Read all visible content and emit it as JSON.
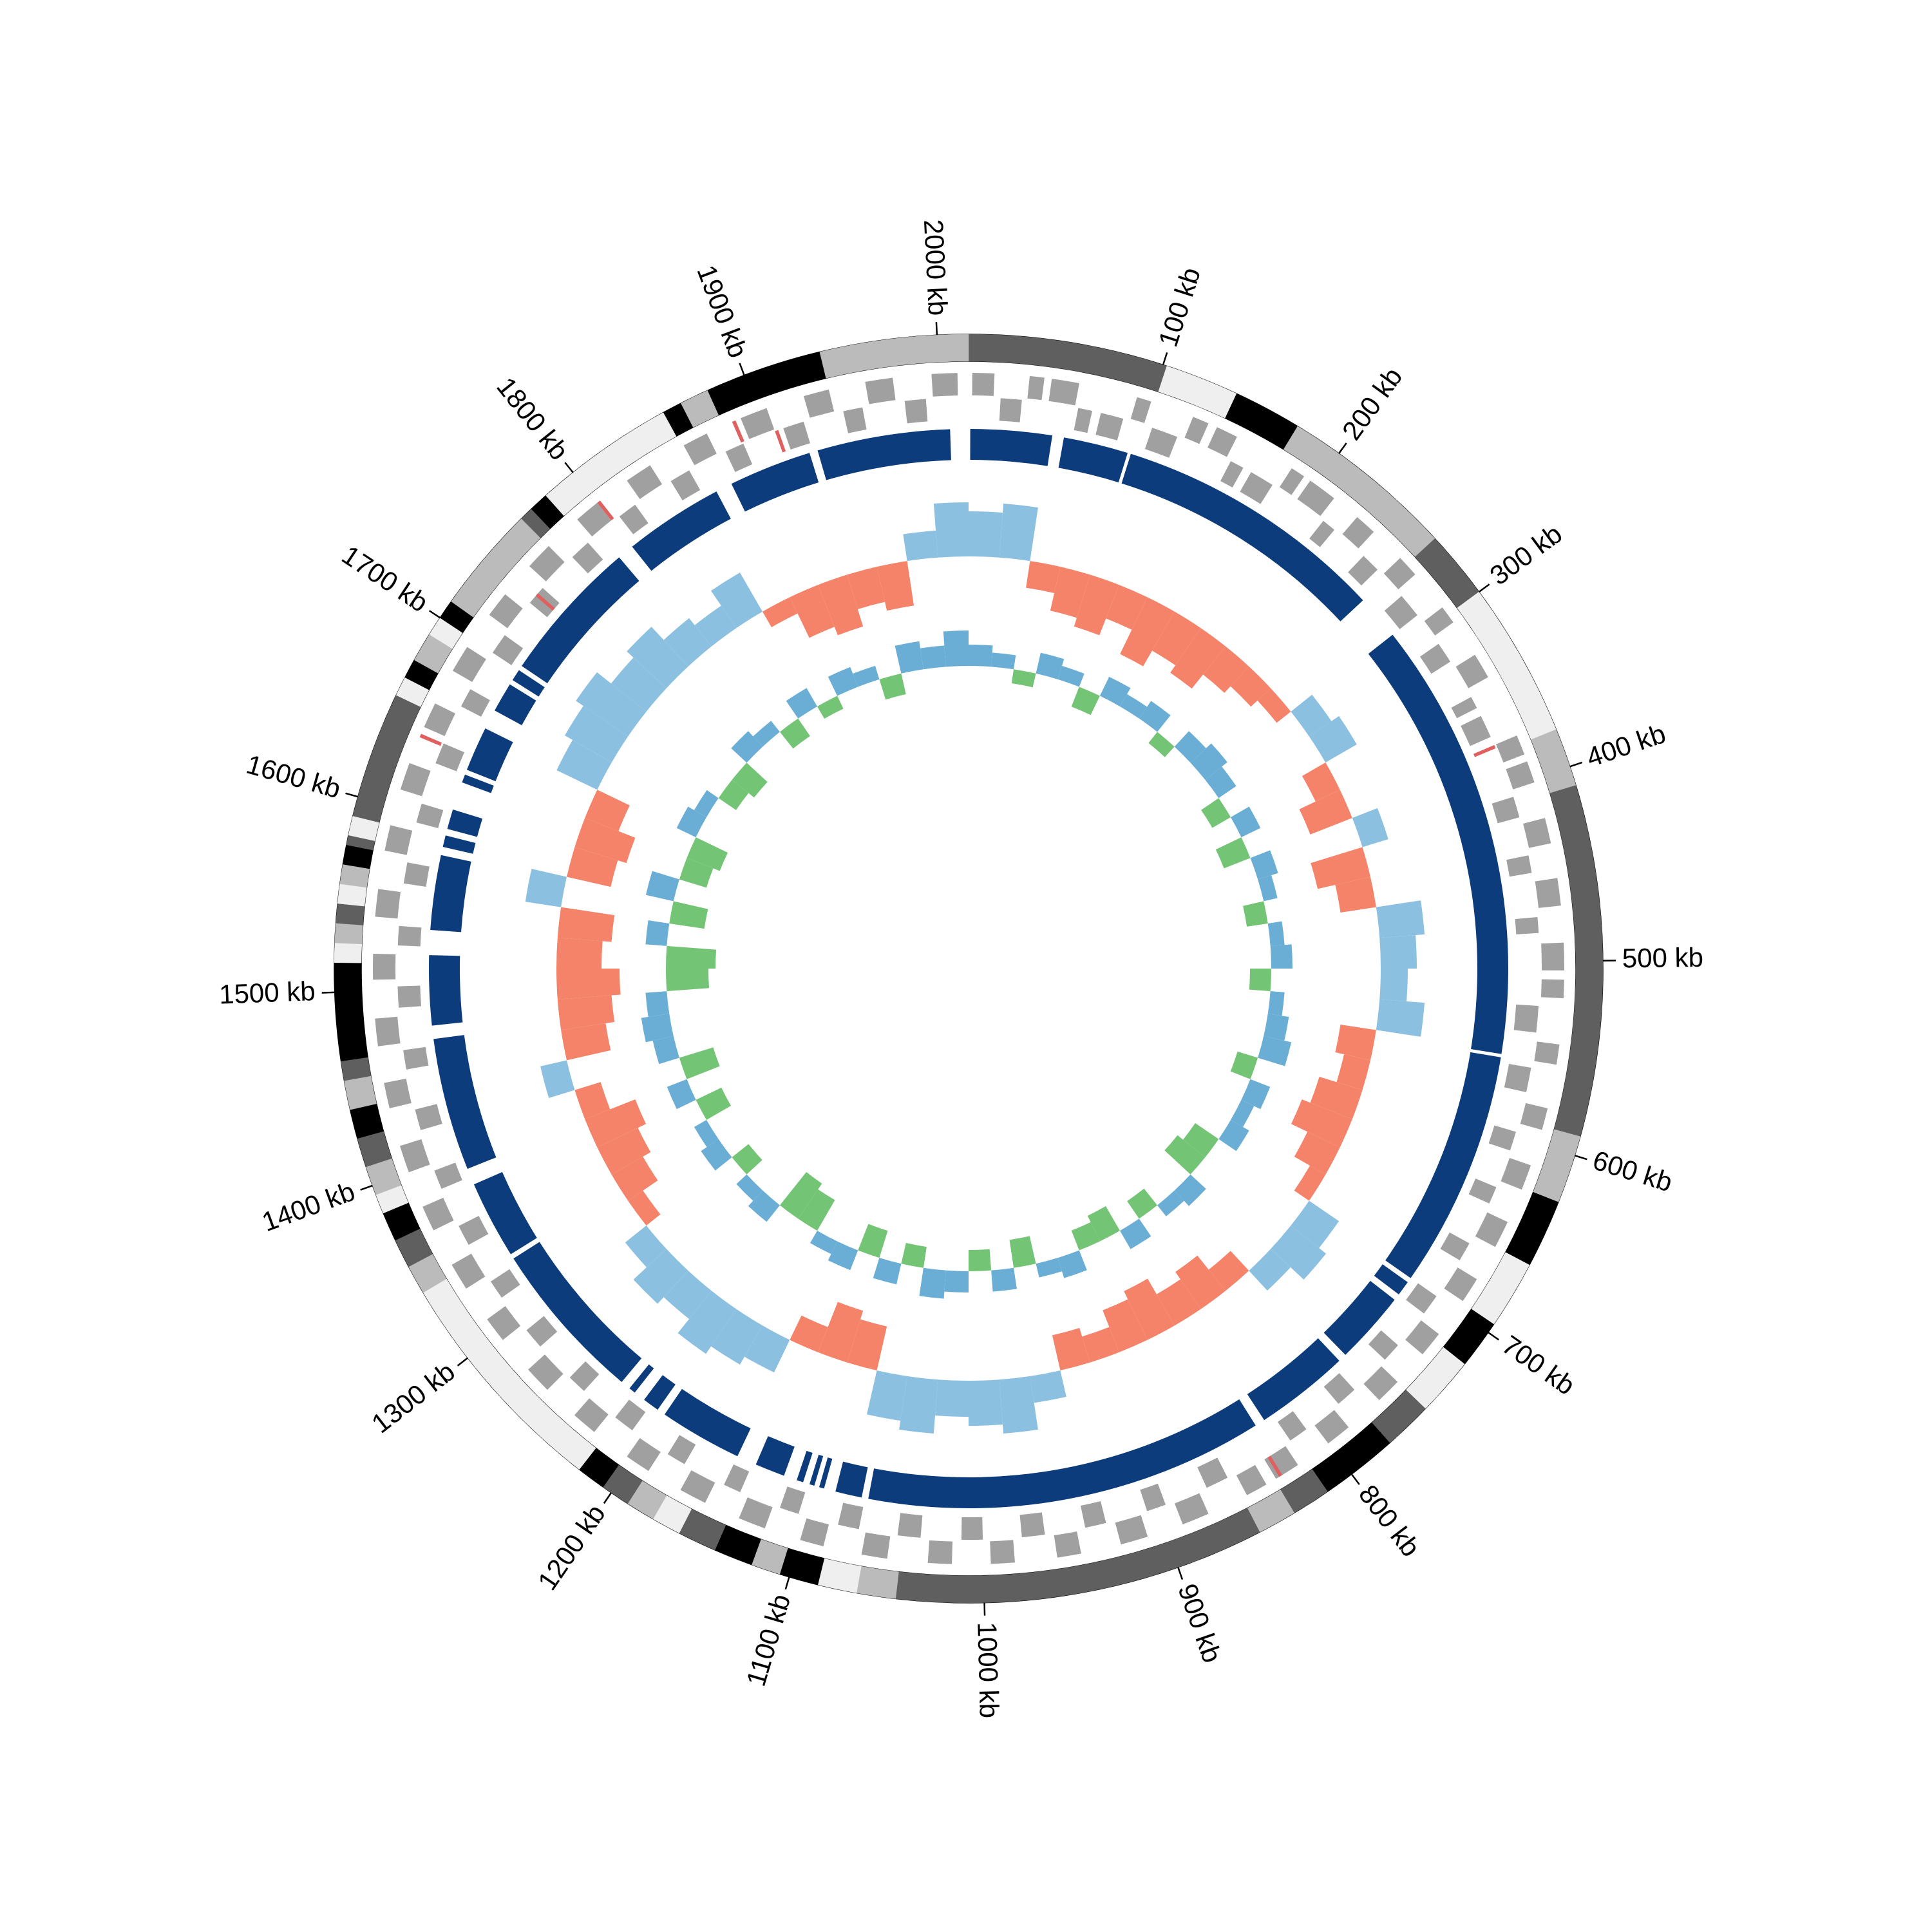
{
  "chart_data": {
    "type": "circos",
    "xlim": [
      0,
      2016
    ],
    "xticks": [
      {
        "value": 100,
        "label": "100 kb"
      },
      {
        "value": 200,
        "label": "200 kb"
      },
      {
        "value": 300,
        "label": "300 kb"
      },
      {
        "value": 400,
        "label": "400 kb"
      },
      {
        "value": 500,
        "label": "500 kb"
      },
      {
        "value": 600,
        "label": "600 kb"
      },
      {
        "value": 700,
        "label": "700 kb"
      },
      {
        "value": 800,
        "label": "800 kb"
      },
      {
        "value": 900,
        "label": "900 kb"
      },
      {
        "value": 1000,
        "label": "1000 kb"
      },
      {
        "value": 1100,
        "label": "1100 kb"
      },
      {
        "value": 1200,
        "label": "1200 kb"
      },
      {
        "value": 1300,
        "label": "1300 kb"
      },
      {
        "value": 1400,
        "label": "1400 kb"
      },
      {
        "value": 1500,
        "label": "1500 kb"
      },
      {
        "value": 1600,
        "label": "1600 kb"
      },
      {
        "value": 1700,
        "label": "1700 kb"
      },
      {
        "value": 1800,
        "label": "1800 kb"
      },
      {
        "value": 1900,
        "label": "1900 kb"
      },
      {
        "value": 2000,
        "label": "2000 kb"
      }
    ],
    "contigs": [
      [
        0,
        50,
        "#5f5f5f"
      ],
      [
        50,
        102,
        "#5f5f5f"
      ],
      [
        102,
        140,
        "#efefef"
      ],
      [
        140,
        175,
        "#000000"
      ],
      [
        175,
        230,
        "#bbbbbb"
      ],
      [
        230,
        265,
        "#bbbbbb"
      ],
      [
        265,
        300,
        "#5f5f5f"
      ],
      [
        300,
        350,
        "#efefef"
      ],
      [
        350,
        380,
        "#efefef"
      ],
      [
        380,
        410,
        "#bbbbbb"
      ],
      [
        410,
        590,
        "#5f5f5f"
      ],
      [
        590,
        625,
        "#bbbbbb"
      ],
      [
        625,
        660,
        "#000000"
      ],
      [
        660,
        695,
        "#efefef"
      ],
      [
        695,
        720,
        "#000000"
      ],
      [
        720,
        750,
        "#efefef"
      ],
      [
        750,
        775,
        "#5f5f5f"
      ],
      [
        775,
        815,
        "#000000"
      ],
      [
        815,
        835,
        "#5f5f5f"
      ],
      [
        835,
        855,
        "#bbbbbb"
      ],
      [
        855,
        1045,
        "#5f5f5f"
      ],
      [
        1045,
        1065,
        "#bbbbbb"
      ],
      [
        1065,
        1085,
        "#efefef"
      ],
      [
        1085,
        1105,
        "#000000"
      ],
      [
        1105,
        1120,
        "#bbbbbb"
      ],
      [
        1120,
        1140,
        "#000000"
      ],
      [
        1140,
        1160,
        "#5f5f5f"
      ],
      [
        1160,
        1175,
        "#efefef"
      ],
      [
        1175,
        1190,
        "#bbbbbb"
      ],
      [
        1190,
        1205,
        "#5f5f5f"
      ],
      [
        1205,
        1220,
        "#000000"
      ],
      [
        1220,
        1340,
        "#efefef"
      ],
      [
        1340,
        1355,
        "#bbbbbb"
      ],
      [
        1355,
        1370,
        "#5f5f5f"
      ],
      [
        1370,
        1385,
        "#000000"
      ],
      [
        1385,
        1395,
        "#efefef"
      ],
      [
        1395,
        1410,
        "#bbbbbb"
      ],
      [
        1410,
        1425,
        "#5f5f5f"
      ],
      [
        1425,
        1440,
        "#000000"
      ],
      [
        1440,
        1455,
        "#bbbbbb"
      ],
      [
        1455,
        1465,
        "#5f5f5f"
      ],
      [
        1465,
        1515,
        "#000000"
      ],
      [
        1515,
        1525,
        "#efefef"
      ],
      [
        1525,
        1535,
        "#bbbbbb"
      ],
      [
        1535,
        1545,
        "#5f5f5f"
      ],
      [
        1545,
        1555,
        "#efefef"
      ],
      [
        1555,
        1565,
        "#bbbbbb"
      ],
      [
        1565,
        1575,
        "#000000"
      ],
      [
        1575,
        1580,
        "#5f5f5f"
      ],
      [
        1580,
        1590,
        "#efefef"
      ],
      [
        1590,
        1655,
        "#5f5f5f"
      ],
      [
        1655,
        1665,
        "#efefef"
      ],
      [
        1665,
        1675,
        "#000000"
      ],
      [
        1675,
        1690,
        "#bbbbbb"
      ],
      [
        1690,
        1700,
        "#efefef"
      ],
      [
        1700,
        1710,
        "#000000"
      ],
      [
        1710,
        1765,
        "#bbbbbb"
      ],
      [
        1765,
        1772,
        "#5f5f5f"
      ],
      [
        1772,
        1782,
        "#000000"
      ],
      [
        1782,
        1855,
        "#efefef"
      ],
      [
        1855,
        1865,
        "#000000"
      ],
      [
        1865,
        1880,
        "#bbbbbb"
      ],
      [
        1880,
        1940,
        "#000000"
      ],
      [
        1940,
        2016,
        "#bbbbbb"
      ]
    ],
    "genes": {
      "color": "#a0a0a0",
      "features": [
        [
          2,
          14,
          1
        ],
        [
          18,
          30,
          -1
        ],
        [
          33,
          41,
          1
        ],
        [
          45,
          60,
          1
        ],
        [
          62,
          70,
          -1
        ],
        [
          75,
          88,
          -1
        ],
        [
          92,
          100,
          1
        ],
        [
          105,
          120,
          -1
        ],
        [
          124,
          133,
          1
        ],
        [
          138,
          150,
          1
        ],
        [
          153,
          161,
          -1
        ],
        [
          166,
          180,
          -1
        ],
        [
          184,
          192,
          1
        ],
        [
          196,
          212,
          1
        ],
        [
          215,
          223,
          -1
        ],
        [
          228,
          240,
          1
        ],
        [
          245,
          256,
          -1
        ],
        [
          260,
          272,
          1
        ],
        [
          276,
          290,
          -1
        ],
        [
          295,
          305,
          1
        ],
        [
          310,
          322,
          -1
        ],
        [
          326,
          340,
          1
        ],
        [
          345,
          352,
          -1
        ],
        [
          357,
          370,
          -1
        ],
        [
          375,
          386,
          1
        ],
        [
          390,
          402,
          1
        ],
        [
          406,
          418,
          -1
        ],
        [
          422,
          436,
          1
        ],
        [
          440,
          450,
          -1
        ],
        [
          455,
          470,
          1
        ],
        [
          475,
          484,
          -1
        ],
        [
          490,
          505,
          1
        ],
        [
          510,
          520,
          1
        ],
        [
          525,
          540,
          -1
        ],
        [
          545,
          556,
          1
        ],
        [
          560,
          574,
          -1
        ],
        [
          580,
          592,
          1
        ],
        [
          597,
          608,
          -1
        ],
        [
          612,
          626,
          1
        ],
        [
          630,
          640,
          -1
        ],
        [
          645,
          660,
          1
        ],
        [
          665,
          676,
          -1
        ],
        [
          680,
          694,
          1
        ],
        [
          700,
          712,
          -1
        ],
        [
          716,
          730,
          1
        ],
        [
          735,
          746,
          -1
        ],
        [
          750,
          764,
          1
        ],
        [
          770,
          782,
          -1
        ],
        [
          786,
          800,
          1
        ],
        [
          805,
          816,
          -1
        ],
        [
          820,
          834,
          1
        ],
        [
          840,
          852,
          1
        ],
        [
          857,
          870,
          -1
        ],
        [
          875,
          890,
          1
        ],
        [
          895,
          906,
          -1
        ],
        [
          910,
          925,
          1
        ],
        [
          930,
          942,
          -1
        ],
        [
          947,
          960,
          1
        ],
        [
          965,
          978,
          -1
        ],
        [
          983,
          996,
          1
        ],
        [
          1000,
          1012,
          -1
        ],
        [
          1017,
          1030,
          1
        ],
        [
          1035,
          1048,
          -1
        ],
        [
          1052,
          1066,
          1
        ],
        [
          1070,
          1082,
          -1
        ],
        [
          1087,
          1100,
          1
        ],
        [
          1105,
          1116,
          -1
        ],
        [
          1120,
          1135,
          1
        ],
        [
          1140,
          1150,
          -1
        ],
        [
          1155,
          1170,
          1
        ],
        [
          1175,
          1186,
          -1
        ],
        [
          1190,
          1204,
          1
        ],
        [
          1210,
          1222,
          -1
        ],
        [
          1226,
          1240,
          1
        ],
        [
          1245,
          1256,
          -1
        ],
        [
          1260,
          1275,
          1
        ],
        [
          1280,
          1292,
          -1
        ],
        [
          1296,
          1310,
          1
        ],
        [
          1315,
          1326,
          -1
        ],
        [
          1330,
          1345,
          1
        ],
        [
          1350,
          1362,
          -1
        ],
        [
          1366,
          1380,
          1
        ],
        [
          1385,
          1396,
          -1
        ],
        [
          1400,
          1415,
          1
        ],
        [
          1420,
          1432,
          -1
        ],
        [
          1436,
          1450,
          1
        ],
        [
          1455,
          1466,
          -1
        ],
        [
          1470,
          1485,
          1
        ],
        [
          1490,
          1502,
          -1
        ],
        [
          1506,
          1520,
          1
        ],
        [
          1525,
          1536,
          -1
        ],
        [
          1540,
          1555,
          1
        ],
        [
          1560,
          1572,
          -1
        ],
        [
          1576,
          1590,
          1
        ],
        [
          1595,
          1606,
          -1
        ],
        [
          1610,
          1625,
          1
        ],
        [
          1630,
          1642,
          -1
        ],
        [
          1646,
          1660,
          1
        ],
        [
          1665,
          1676,
          -1
        ],
        [
          1680,
          1695,
          1
        ],
        [
          1700,
          1712,
          -1
        ],
        [
          1716,
          1730,
          1
        ],
        [
          1735,
          1746,
          -1
        ],
        [
          1750,
          1765,
          1
        ],
        [
          1770,
          1782,
          -1
        ],
        [
          1786,
          1800,
          1
        ],
        [
          1805,
          1816,
          -1
        ],
        [
          1820,
          1835,
          1
        ],
        [
          1840,
          1852,
          -1
        ],
        [
          1856,
          1870,
          1
        ],
        [
          1875,
          1886,
          -1
        ],
        [
          1890,
          1905,
          1
        ],
        [
          1910,
          1922,
          -1
        ],
        [
          1926,
          1940,
          1
        ],
        [
          1945,
          1956,
          -1
        ],
        [
          1960,
          1975,
          1
        ],
        [
          1980,
          1992,
          -1
        ],
        [
          1996,
          2010,
          1
        ]
      ]
    },
    "rnas": {
      "color": "#e06060",
      "features": [
        [
          1885,
          1887,
          1
        ],
        [
          1905,
          1907,
          -1
        ],
        [
          1800,
          1802,
          1
        ],
        [
          1740,
          1742,
          -1
        ],
        [
          1640,
          1642,
          1
        ],
        [
          830,
          832,
          1
        ],
        [
          375,
          377,
          -1
        ]
      ]
    },
    "blocks": {
      "color": "#0c3c7c",
      "features": [
        [
          1,
          50
        ],
        [
          57,
          96
        ],
        [
          98,
          263
        ],
        [
          290,
          555
        ],
        [
          557,
          700
        ],
        [
          703,
          712
        ],
        [
          716,
          760
        ],
        [
          765,
          822
        ],
        [
          828,
          1068
        ],
        [
          1072,
          1088
        ],
        [
          1095,
          1098
        ],
        [
          1101,
          1104
        ],
        [
          1108,
          1112
        ],
        [
          1120,
          1138
        ],
        [
          1150,
          1200
        ],
        [
          1205,
          1215
        ],
        [
          1222,
          1226
        ],
        [
          1232,
          1330
        ],
        [
          1333,
          1380
        ],
        [
          1390,
          1470
        ],
        [
          1478,
          1520
        ],
        [
          1535,
          1580
        ],
        [
          1585,
          1592
        ],
        [
          1596,
          1608
        ],
        [
          1625,
          1630
        ],
        [
          1633,
          1660
        ],
        [
          1672,
          1690
        ],
        [
          1693,
          1700
        ],
        [
          1703,
          1790
        ],
        [
          1800,
          1860
        ],
        [
          1870,
          1920
        ],
        [
          1925,
          2005
        ]
      ]
    },
    "x": [
      0,
      24,
      48,
      72,
      96,
      120,
      144,
      168,
      192,
      216,
      240,
      264,
      288,
      312,
      336,
      360,
      384,
      408,
      432,
      456,
      480,
      504,
      528,
      552,
      576,
      600,
      624,
      648,
      672,
      696,
      720,
      744,
      768,
      792,
      816,
      840,
      864,
      888,
      912,
      936,
      960,
      984,
      1008,
      1032,
      1056,
      1080,
      1104,
      1128,
      1152,
      1176,
      1200,
      1224,
      1248,
      1272,
      1296,
      1320,
      1344,
      1368,
      1392,
      1416,
      1440,
      1464,
      1488,
      1512,
      1536,
      1560,
      1584,
      1608,
      1632,
      1656,
      1680,
      1704,
      1728,
      1752,
      1776,
      1800,
      1824,
      1848,
      1872,
      1896,
      1920,
      1944,
      1968,
      1992
    ],
    "gc_skew": {
      "colors": [
        "#8cc0e0",
        "#f4836a"
      ],
      "ylim": [
        -1,
        1
      ],
      "values": [
        0.5,
        0.6,
        -0.3,
        -0.5,
        -0.6,
        -0.4,
        -0.7,
        -0.5,
        -0.6,
        -0.4,
        -0.3,
        -0.2,
        0.3,
        0.4,
        -0.3,
        -0.5,
        0.3,
        -0.6,
        -0.4,
        0.5,
        0.4,
        0.3,
        0.5,
        -0.4,
        -0.3,
        -0.5,
        -0.6,
        -0.4,
        -0.2,
        0.4,
        0.5,
        0.3,
        -0.3,
        -0.5,
        -0.4,
        -0.6,
        -0.5,
        -0.3,
        -0.4,
        0.3,
        0.6,
        0.5,
        0.4,
        0.6,
        0.5,
        -0.5,
        -0.6,
        -0.3,
        0.4,
        0.5,
        0.6,
        0.4,
        0.5,
        0.3,
        -0.2,
        -0.4,
        -0.5,
        -0.6,
        -0.3,
        0.3,
        -0.5,
        -0.6,
        -0.7,
        -0.5,
        -0.6,
        0.4,
        -0.5,
        -0.6,
        -0.4,
        0.5,
        0.6,
        0.7,
        0.5,
        0.6,
        0.4,
        0.3,
        0.5,
        -0.2,
        -0.5,
        -0.6,
        -0.4,
        -0.5,
        0.3,
        0.6
      ]
    },
    "gc_content": {
      "colors": [
        "#6aaed6",
        "#74c476"
      ],
      "ylim": [
        -1,
        1
      ],
      "values": [
        0.3,
        0.2,
        -0.2,
        0.3,
        0.2,
        -0.3,
        0.3,
        0.2,
        0.3,
        -0.2,
        0.3,
        0.4,
        0.3,
        -0.3,
        0.3,
        -0.4,
        0.3,
        0.2,
        -0.3,
        0.2,
        0.3,
        -0.3,
        0.2,
        0.3,
        0.4,
        -0.3,
        0.3,
        0.2,
        0.3,
        -0.4,
        -0.5,
        0.3,
        0.2,
        -0.3,
        0.3,
        -0.4,
        -0.3,
        0.3,
        0.2,
        -0.4,
        0.3,
        -0.3,
        0.3,
        0.4,
        -0.3,
        0.3,
        -0.4,
        0.3,
        0.2,
        -0.5,
        -0.6,
        0.3,
        0.2,
        -0.3,
        0.3,
        0.2,
        -0.4,
        0.3,
        -0.5,
        0.3,
        0.4,
        0.3,
        -0.6,
        -0.7,
        0.3,
        -0.5,
        0.4,
        -0.4,
        -0.5,
        0.3,
        0.2,
        -0.3,
        -0.4,
        0.3,
        0.2,
        -0.3,
        0.3,
        -0.2,
        0.3,
        0.2,
        -0.3,
        0.4,
        0.3,
        0.5
      ]
    }
  }
}
